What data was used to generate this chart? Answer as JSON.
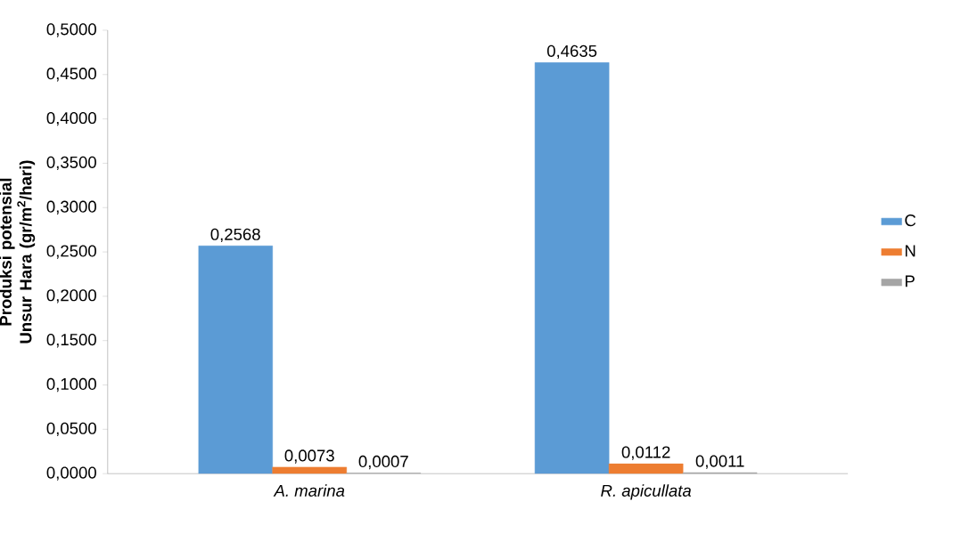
{
  "chart_data": {
    "type": "bar",
    "ylabel": "Produksi potensial Unsur Hara (gr/m$^{2}$/hari)",
    "categories": [
      "A. marina",
      "R. apicullata"
    ],
    "series": [
      {
        "name": "C",
        "color": "#5b9bd5",
        "values": [
          0.2568,
          0.4635
        ],
        "value_labels": [
          "0,2568",
          "0,4635"
        ]
      },
      {
        "name": "N",
        "color": "#ed7d31",
        "values": [
          0.0073,
          0.0112
        ],
        "value_labels": [
          "0,0073",
          "0,0112"
        ]
      },
      {
        "name": "P",
        "color": "#a5a5a5",
        "values": [
          0.0007,
          0.0011
        ],
        "value_labels": [
          "0,0007",
          "0,0011"
        ]
      }
    ],
    "ylim": [
      0,
      0.5
    ],
    "yticks": [
      {
        "value": 0,
        "label": "0,0000"
      },
      {
        "value": 0.05,
        "label": "0,0500"
      },
      {
        "value": 0.1,
        "label": "0,1000"
      },
      {
        "value": 0.15,
        "label": "0,1500"
      },
      {
        "value": 0.2,
        "label": "0,2000"
      },
      {
        "value": 0.25,
        "label": "0,2500"
      },
      {
        "value": 0.3,
        "label": "0,3000"
      },
      {
        "value": 0.35,
        "label": "0,3500"
      },
      {
        "value": 0.4,
        "label": "0,4000"
      },
      {
        "value": 0.45,
        "label": "0,4500"
      },
      {
        "value": 0.5,
        "label": "0,5000"
      }
    ],
    "legend": "right",
    "grid": false
  }
}
